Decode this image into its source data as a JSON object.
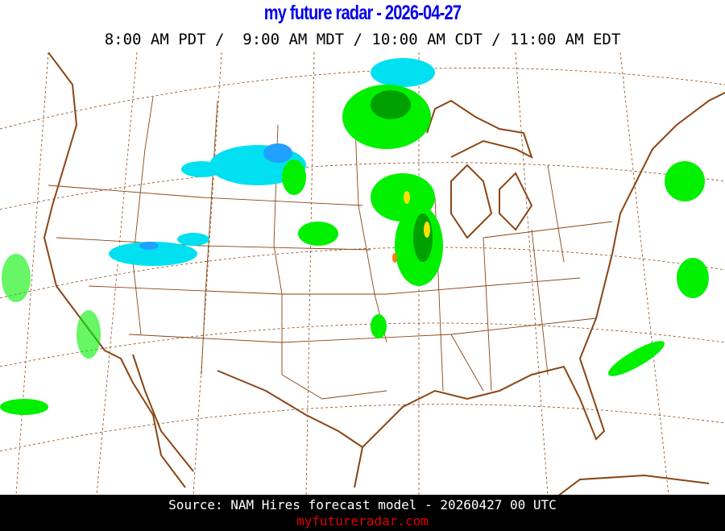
{
  "header": {
    "title": "my future radar - 2026-04-27",
    "times": "8:00 AM PDT /  9:00 AM MDT / 10:00 AM CDT / 11:00 AM EDT"
  },
  "map": {
    "region": "Continental United States",
    "layer": "forecast radar reflectivity",
    "colors": {
      "boundaries": "#8b4513",
      "graticule": "#8b4513",
      "snow": "#00e0f0",
      "snow_heavy": "#20a0ff",
      "rain_light": "#00f000",
      "rain_moderate": "#00a000",
      "rain_heavy": "#ffe000",
      "rain_intense": "#ff8000"
    }
  },
  "footer": {
    "source": "Source: NAM Hires forecast model - 20260427 00 UTC",
    "site": "myfutureradar.com"
  }
}
